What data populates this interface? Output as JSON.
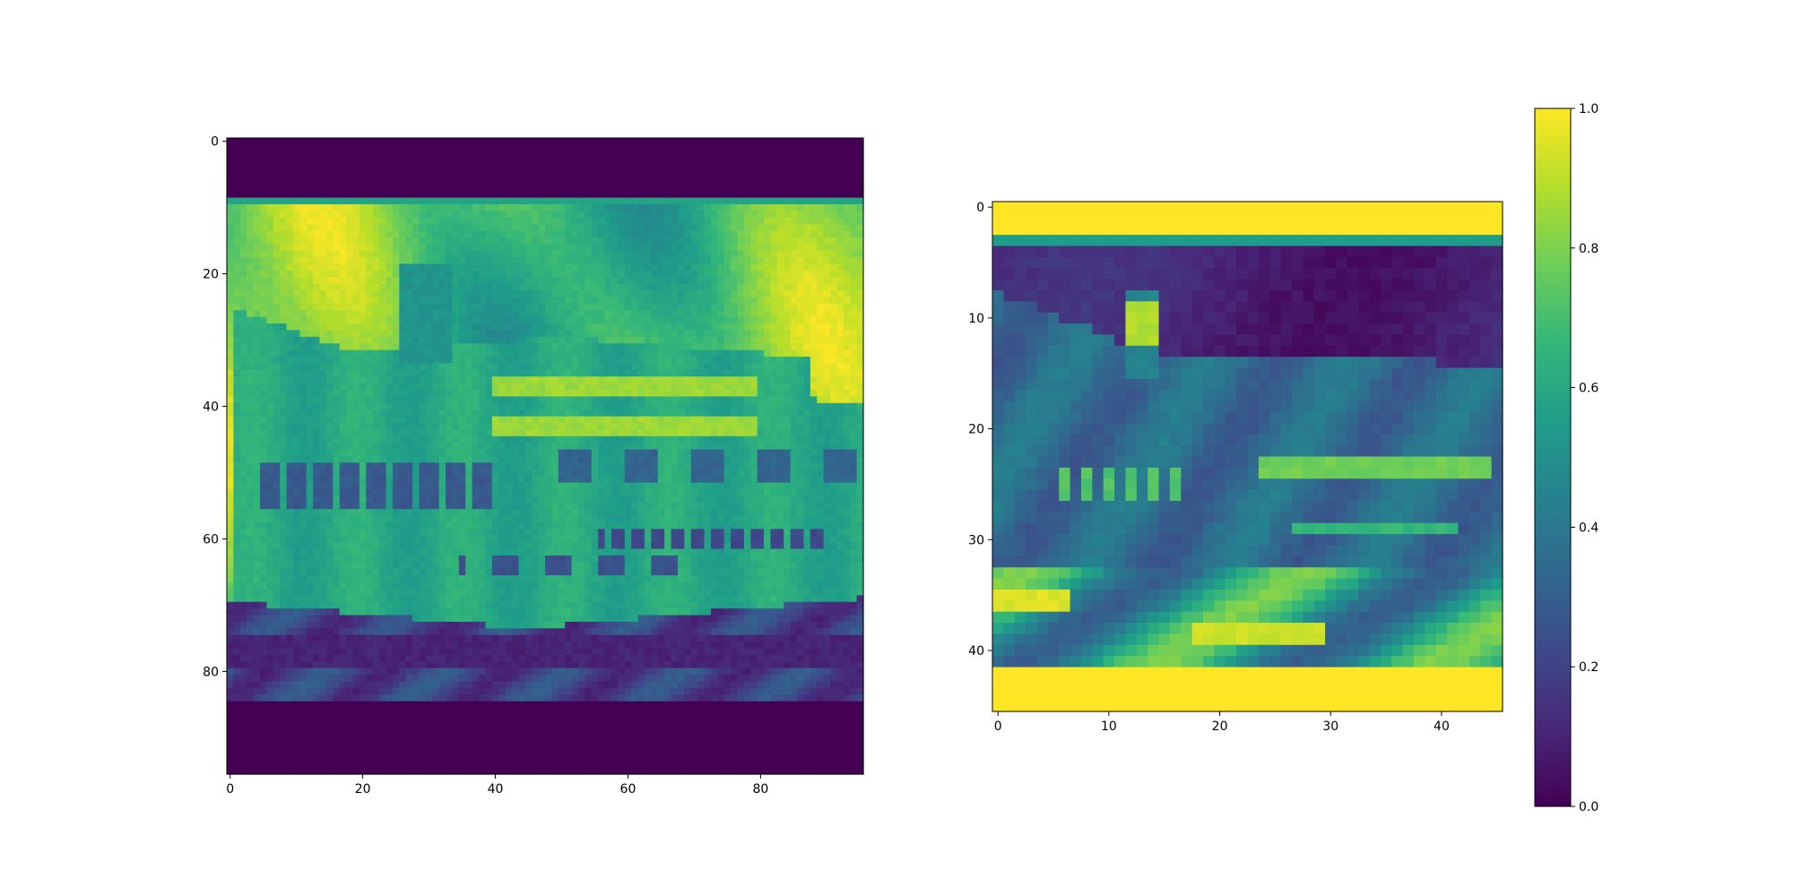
{
  "figure": {
    "background": "#ffffff",
    "colormap": "viridis"
  },
  "chart_data": [
    {
      "type": "heatmap",
      "title": "",
      "xlabel": "",
      "ylabel": "",
      "subject": "cruise ship, grayscale intensity rendered with viridis",
      "grid": false,
      "shape": [
        96,
        96
      ],
      "xlim": [
        -0.5,
        95.5
      ],
      "ylim": [
        95.5,
        -0.5
      ],
      "xticks": [
        0,
        20,
        40,
        60,
        80
      ],
      "yticks": [
        0,
        20,
        40,
        60,
        80
      ],
      "xtick_labels": [
        "0",
        "20",
        "40",
        "60",
        "80"
      ],
      "ytick_labels": [
        "0",
        "20",
        "40",
        "60",
        "80"
      ],
      "bands": {
        "top_letterbox_rows": [
          0,
          9
        ],
        "bottom_letterbox_rows": [
          85,
          95
        ],
        "letterbox_value": 0.0
      }
    },
    {
      "type": "heatmap",
      "title": "",
      "xlabel": "",
      "ylabel": "",
      "subject": "downsampled inverted cruise ship",
      "grid": false,
      "shape": [
        46,
        46
      ],
      "xlim": [
        -0.5,
        45.5
      ],
      "ylim": [
        45.5,
        -0.5
      ],
      "xticks": [
        0,
        10,
        20,
        30,
        40
      ],
      "yticks": [
        0,
        10,
        20,
        30,
        40
      ],
      "xtick_labels": [
        "0",
        "10",
        "20",
        "30",
        "40"
      ],
      "ytick_labels": [
        "0",
        "10",
        "20",
        "30",
        "40"
      ],
      "bands": {
        "top_letterbox_rows": [
          0,
          3
        ],
        "bottom_letterbox_rows": [
          42,
          45
        ],
        "letterbox_value": 1.0
      }
    }
  ],
  "colorbar": {
    "range": [
      0.0,
      1.0
    ],
    "ticks": [
      0.0,
      0.2,
      0.4,
      0.6,
      0.8,
      1.0
    ],
    "tick_labels": [
      "0.0",
      "0.2",
      "0.4",
      "0.6",
      "0.8",
      "1.0"
    ],
    "stops": [
      "#440154",
      "#482878",
      "#3e4989",
      "#31688e",
      "#26828e",
      "#1f9e89",
      "#35b779",
      "#6ece58",
      "#b5de2b",
      "#fde725"
    ]
  }
}
